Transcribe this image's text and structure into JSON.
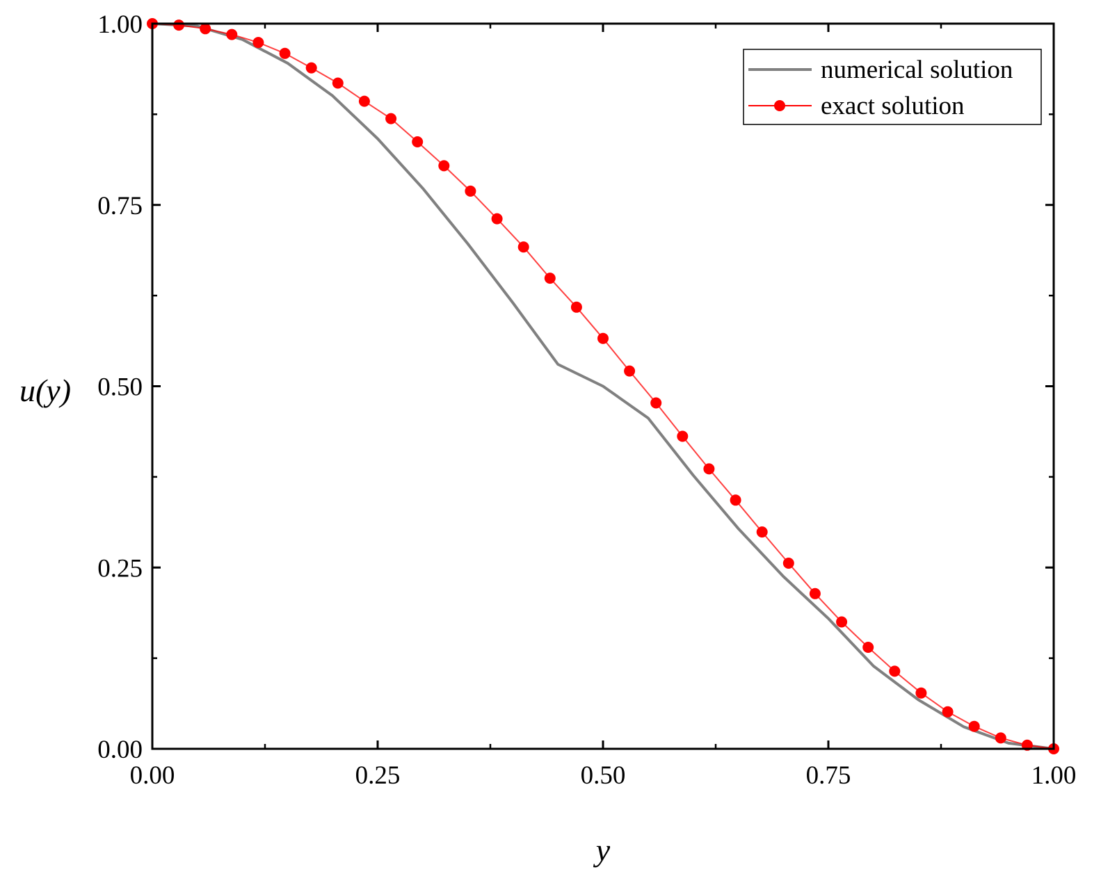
{
  "chart_data": {
    "type": "line",
    "xlabel": "y",
    "ylabel": "u(y)",
    "xlim": [
      0,
      1
    ],
    "ylim": [
      0,
      1
    ],
    "x_ticks": [
      "0.00",
      "0.25",
      "0.50",
      "0.75",
      "1.00"
    ],
    "y_ticks": [
      "0.00",
      "0.25",
      "0.50",
      "0.75",
      "1.00"
    ],
    "grid": false,
    "legend_position": "top-right",
    "series": [
      {
        "name": "numerical solution",
        "style": "line",
        "color": "#808080",
        "x": [
          0.0,
          0.05,
          0.1,
          0.15,
          0.2,
          0.25,
          0.3,
          0.35,
          0.4,
          0.45,
          0.5,
          0.55,
          0.6,
          0.65,
          0.7,
          0.75,
          0.8,
          0.85,
          0.9,
          0.95,
          1.0
        ],
        "y": [
          1.0,
          0.9965,
          0.9781,
          0.9455,
          0.9005,
          0.8413,
          0.773,
          0.6965,
          0.6151,
          0.5302,
          0.5,
          0.4562,
          0.3773,
          0.3038,
          0.2378,
          0.1797,
          0.1142,
          0.0675,
          0.0305,
          0.0078,
          0.0
        ]
      },
      {
        "name": "exact solution",
        "style": "line+marker",
        "color": "#ff0000",
        "x": [
          0.0,
          0.0294,
          0.0588,
          0.0882,
          0.1176,
          0.1471,
          0.1765,
          0.2059,
          0.2353,
          0.2647,
          0.2941,
          0.3235,
          0.3529,
          0.3824,
          0.4118,
          0.4412,
          0.4706,
          0.5,
          0.5294,
          0.5588,
          0.5882,
          0.6176,
          0.6471,
          0.6765,
          0.7059,
          0.7353,
          0.7647,
          0.7941,
          0.8235,
          0.8529,
          0.8824,
          0.9118,
          0.9412,
          0.9706,
          1.0
        ],
        "y": [
          1.0,
          0.998,
          0.993,
          0.985,
          0.974,
          0.959,
          0.939,
          0.918,
          0.893,
          0.869,
          0.837,
          0.804,
          0.769,
          0.731,
          0.692,
          0.649,
          0.609,
          0.566,
          0.521,
          0.477,
          0.431,
          0.386,
          0.343,
          0.299,
          0.256,
          0.214,
          0.175,
          0.14,
          0.107,
          0.077,
          0.051,
          0.031,
          0.015,
          0.005,
          0.0
        ]
      }
    ]
  }
}
